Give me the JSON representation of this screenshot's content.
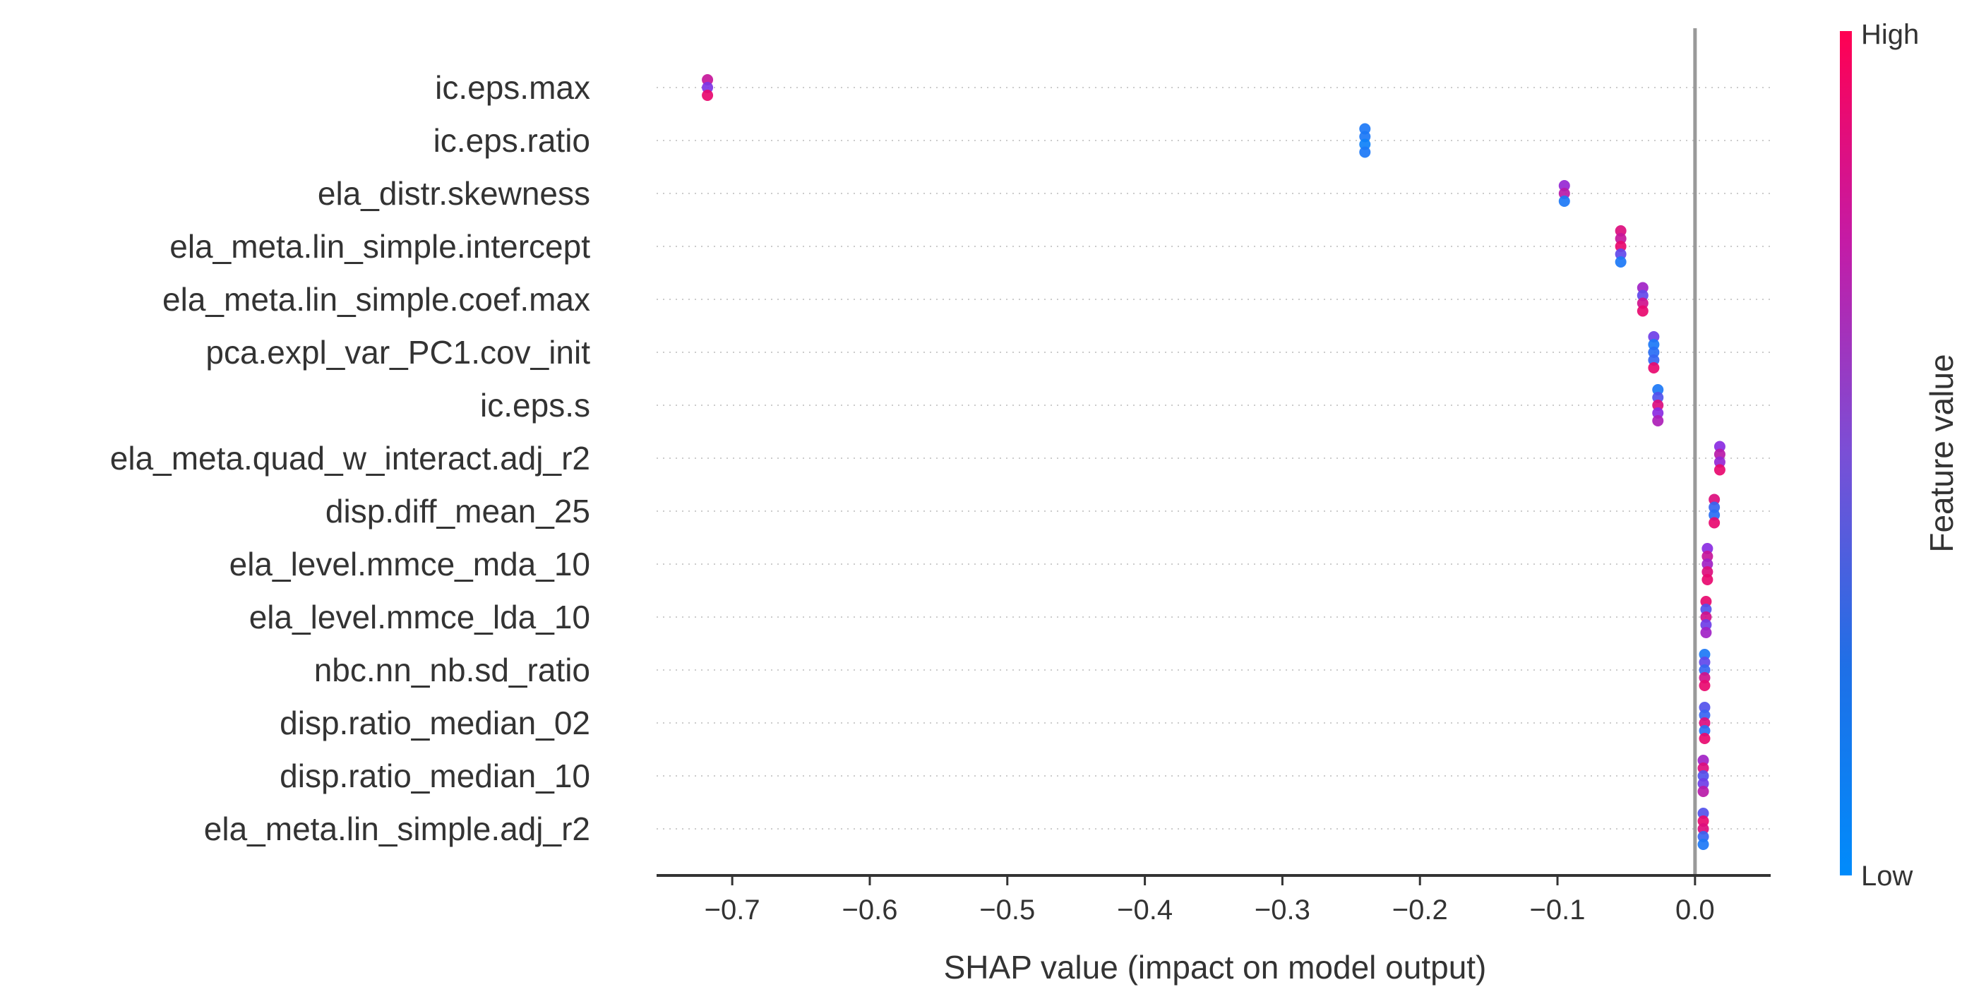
{
  "colors": {
    "high": "#ff0052",
    "mid": "#8a2be2",
    "low": "#008bfb",
    "zero_line": "#999999",
    "axis": "#333333",
    "grid": "#cccccc"
  },
  "colorbar": {
    "high_label": "High",
    "low_label": "Low",
    "title": "Feature value"
  },
  "chart_data": {
    "type": "scatter",
    "subtype": "shap-beeswarm",
    "xlabel": "SHAP value (impact on model output)",
    "xlim": [
      -0.755,
      0.055
    ],
    "xticks": [
      -0.7,
      -0.6,
      -0.5,
      -0.4,
      -0.3,
      -0.2,
      -0.1,
      0.0
    ],
    "xtick_labels": [
      "−0.7",
      "−0.6",
      "−0.5",
      "−0.4",
      "−0.3",
      "−0.2",
      "−0.1",
      "0.0"
    ],
    "grid": "horizontal dotted per feature",
    "features": [
      {
        "name": "ic.eps.max",
        "points": [
          {
            "x": -0.718,
            "v": 0.75
          },
          {
            "x": -0.718,
            "v": 0.45
          },
          {
            "x": -0.718,
            "v": 0.9
          }
        ]
      },
      {
        "name": "ic.eps.ratio",
        "points": [
          {
            "x": -0.24,
            "v": 0.1
          },
          {
            "x": -0.24,
            "v": 0.1
          },
          {
            "x": -0.24,
            "v": 0.05
          },
          {
            "x": -0.24,
            "v": 0.1
          }
        ]
      },
      {
        "name": "ela_distr.skewness",
        "points": [
          {
            "x": -0.095,
            "v": 0.55
          },
          {
            "x": -0.095,
            "v": 0.7
          },
          {
            "x": -0.095,
            "v": 0.1
          }
        ]
      },
      {
        "name": "ela_meta.lin_simple.intercept",
        "points": [
          {
            "x": -0.054,
            "v": 0.85
          },
          {
            "x": -0.054,
            "v": 0.75
          },
          {
            "x": -0.054,
            "v": 0.9
          },
          {
            "x": -0.054,
            "v": 0.35
          },
          {
            "x": -0.054,
            "v": 0.1
          }
        ]
      },
      {
        "name": "ela_meta.lin_simple.coef.max",
        "points": [
          {
            "x": -0.038,
            "v": 0.6
          },
          {
            "x": -0.038,
            "v": 0.35
          },
          {
            "x": -0.038,
            "v": 0.8
          },
          {
            "x": -0.038,
            "v": 0.9
          }
        ]
      },
      {
        "name": "pca.expl_var_PC1.cov_init",
        "points": [
          {
            "x": -0.03,
            "v": 0.4
          },
          {
            "x": -0.03,
            "v": 0.1
          },
          {
            "x": -0.03,
            "v": 0.15
          },
          {
            "x": -0.03,
            "v": 0.2
          },
          {
            "x": -0.03,
            "v": 0.9
          }
        ]
      },
      {
        "name": "ic.eps.s",
        "points": [
          {
            "x": -0.027,
            "v": 0.1
          },
          {
            "x": -0.027,
            "v": 0.3
          },
          {
            "x": -0.027,
            "v": 0.85
          },
          {
            "x": -0.027,
            "v": 0.5
          },
          {
            "x": -0.027,
            "v": 0.65
          }
        ]
      },
      {
        "name": "ela_meta.quad_w_interact.adj_r2",
        "points": [
          {
            "x": 0.018,
            "v": 0.5
          },
          {
            "x": 0.018,
            "v": 0.7
          },
          {
            "x": 0.018,
            "v": 0.55
          },
          {
            "x": 0.018,
            "v": 0.9
          }
        ]
      },
      {
        "name": "disp.diff_mean_25",
        "points": [
          {
            "x": 0.014,
            "v": 0.85
          },
          {
            "x": 0.014,
            "v": 0.2
          },
          {
            "x": 0.014,
            "v": 0.15
          },
          {
            "x": 0.014,
            "v": 0.9
          }
        ]
      },
      {
        "name": "ela_level.mmce_mda_10",
        "points": [
          {
            "x": 0.009,
            "v": 0.5
          },
          {
            "x": 0.009,
            "v": 0.75
          },
          {
            "x": 0.009,
            "v": 0.6
          },
          {
            "x": 0.009,
            "v": 0.85
          },
          {
            "x": 0.009,
            "v": 0.9
          }
        ]
      },
      {
        "name": "ela_level.mmce_lda_10",
        "points": [
          {
            "x": 0.008,
            "v": 0.9
          },
          {
            "x": 0.008,
            "v": 0.3
          },
          {
            "x": 0.008,
            "v": 0.8
          },
          {
            "x": 0.008,
            "v": 0.4
          },
          {
            "x": 0.008,
            "v": 0.6
          }
        ]
      },
      {
        "name": "nbc.nn_nb.sd_ratio",
        "points": [
          {
            "x": 0.007,
            "v": 0.1
          },
          {
            "x": 0.007,
            "v": 0.35
          },
          {
            "x": 0.007,
            "v": 0.2
          },
          {
            "x": 0.007,
            "v": 0.8
          },
          {
            "x": 0.007,
            "v": 0.9
          }
        ]
      },
      {
        "name": "disp.ratio_median_02",
        "points": [
          {
            "x": 0.007,
            "v": 0.3
          },
          {
            "x": 0.007,
            "v": 0.2
          },
          {
            "x": 0.007,
            "v": 0.85
          },
          {
            "x": 0.007,
            "v": 0.15
          },
          {
            "x": 0.007,
            "v": 0.9
          }
        ]
      },
      {
        "name": "disp.ratio_median_10",
        "points": [
          {
            "x": 0.006,
            "v": 0.6
          },
          {
            "x": 0.006,
            "v": 0.85
          },
          {
            "x": 0.006,
            "v": 0.3
          },
          {
            "x": 0.006,
            "v": 0.4
          },
          {
            "x": 0.006,
            "v": 0.7
          }
        ]
      },
      {
        "name": "ela_meta.lin_simple.adj_r2",
        "points": [
          {
            "x": 0.006,
            "v": 0.3
          },
          {
            "x": 0.006,
            "v": 0.9
          },
          {
            "x": 0.006,
            "v": 0.85
          },
          {
            "x": 0.006,
            "v": 0.2
          },
          {
            "x": 0.006,
            "v": 0.1
          }
        ]
      }
    ]
  }
}
